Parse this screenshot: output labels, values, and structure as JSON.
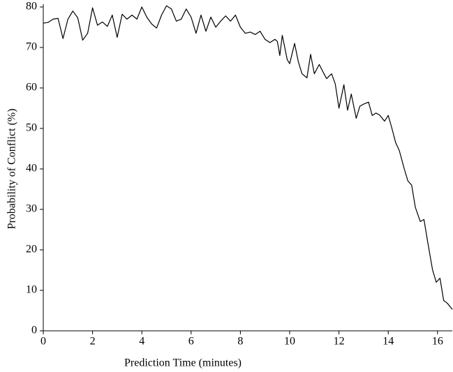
{
  "chart_data": {
    "type": "line",
    "xlabel": "Prediction Time (minutes)",
    "ylabel": "Probability of Conflict (%)",
    "x": [
      0,
      0.2,
      0.4,
      0.6,
      0.8,
      1.0,
      1.2,
      1.4,
      1.6,
      1.8,
      2.0,
      2.2,
      2.4,
      2.6,
      2.8,
      3.0,
      3.2,
      3.4,
      3.6,
      3.8,
      4.0,
      4.2,
      4.4,
      4.6,
      4.8,
      5.0,
      5.2,
      5.4,
      5.6,
      5.8,
      6.0,
      6.2,
      6.4,
      6.6,
      6.8,
      7.0,
      7.2,
      7.4,
      7.6,
      7.8,
      8.0,
      8.2,
      8.4,
      8.6,
      8.8,
      9.0,
      9.2,
      9.4,
      9.5,
      9.6,
      9.7,
      9.9,
      10.0,
      10.2,
      10.35,
      10.5,
      10.7,
      10.85,
      11.0,
      11.2,
      11.35,
      11.5,
      11.7,
      11.85,
      12.0,
      12.2,
      12.35,
      12.5,
      12.7,
      12.85,
      13.0,
      13.2,
      13.35,
      13.5,
      13.65,
      13.85,
      14.0,
      14.15,
      14.3,
      14.45,
      14.65,
      14.8,
      14.95,
      15.1,
      15.3,
      15.45,
      15.6,
      15.8,
      15.95,
      16.1,
      16.25,
      16.4,
      16.6
    ],
    "series": [
      {
        "color": "#000000",
        "values": [
          76,
          76.2,
          77,
          77.2,
          72.2,
          77,
          79,
          77.3,
          71.8,
          73.5,
          79.8,
          75.5,
          76.3,
          75.2,
          78,
          72.5,
          78.2,
          77,
          78,
          77,
          80,
          77.5,
          75.8,
          74.8,
          78,
          80.3,
          79.5,
          76.5,
          77,
          79.5,
          77.5,
          73.5,
          78,
          74,
          77.5,
          75,
          76.5,
          77.8,
          76.5,
          78,
          75,
          73.5,
          73.8,
          73.2,
          74,
          72,
          71.2,
          72,
          71.5,
          68,
          73,
          67,
          66,
          71,
          66.5,
          63.5,
          62.5,
          68.3,
          63.5,
          65.8,
          64,
          62.3,
          63.5,
          61,
          55,
          60.8,
          54.5,
          58.5,
          52.5,
          55.5,
          56,
          56.5,
          53.2,
          53.8,
          53.3,
          51.8,
          53.2,
          50,
          46.5,
          44.5,
          40,
          37,
          36,
          30.5,
          27,
          27.5,
          22,
          15,
          12,
          13,
          7.5,
          6.8,
          5.3
        ]
      }
    ],
    "xlim": [
      0,
      16.6
    ],
    "ylim": [
      0,
      80
    ],
    "xticks": [
      0,
      2,
      4,
      6,
      8,
      10,
      12,
      14,
      16
    ],
    "yticks": [
      0,
      10,
      20,
      30,
      40,
      50,
      60,
      70,
      80
    ],
    "grid": false
  }
}
